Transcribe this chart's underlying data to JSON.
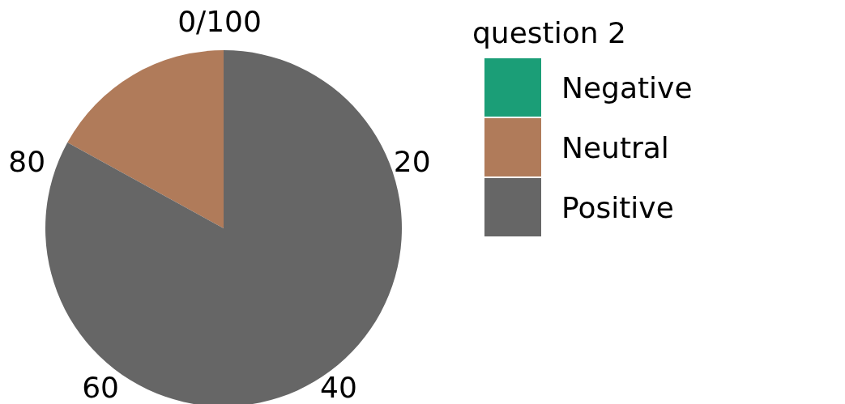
{
  "chart_data": {
    "type": "pie",
    "legend_title": "question 2",
    "categories": [
      "Negative",
      "Neutral",
      "Positive"
    ],
    "values": [
      0,
      17,
      83
    ],
    "colors": [
      "#1b9e77",
      "#b07b5a",
      "#666666"
    ],
    "annotations": [
      "0/100",
      "20",
      "40",
      "60",
      "80"
    ],
    "legend": "right"
  }
}
